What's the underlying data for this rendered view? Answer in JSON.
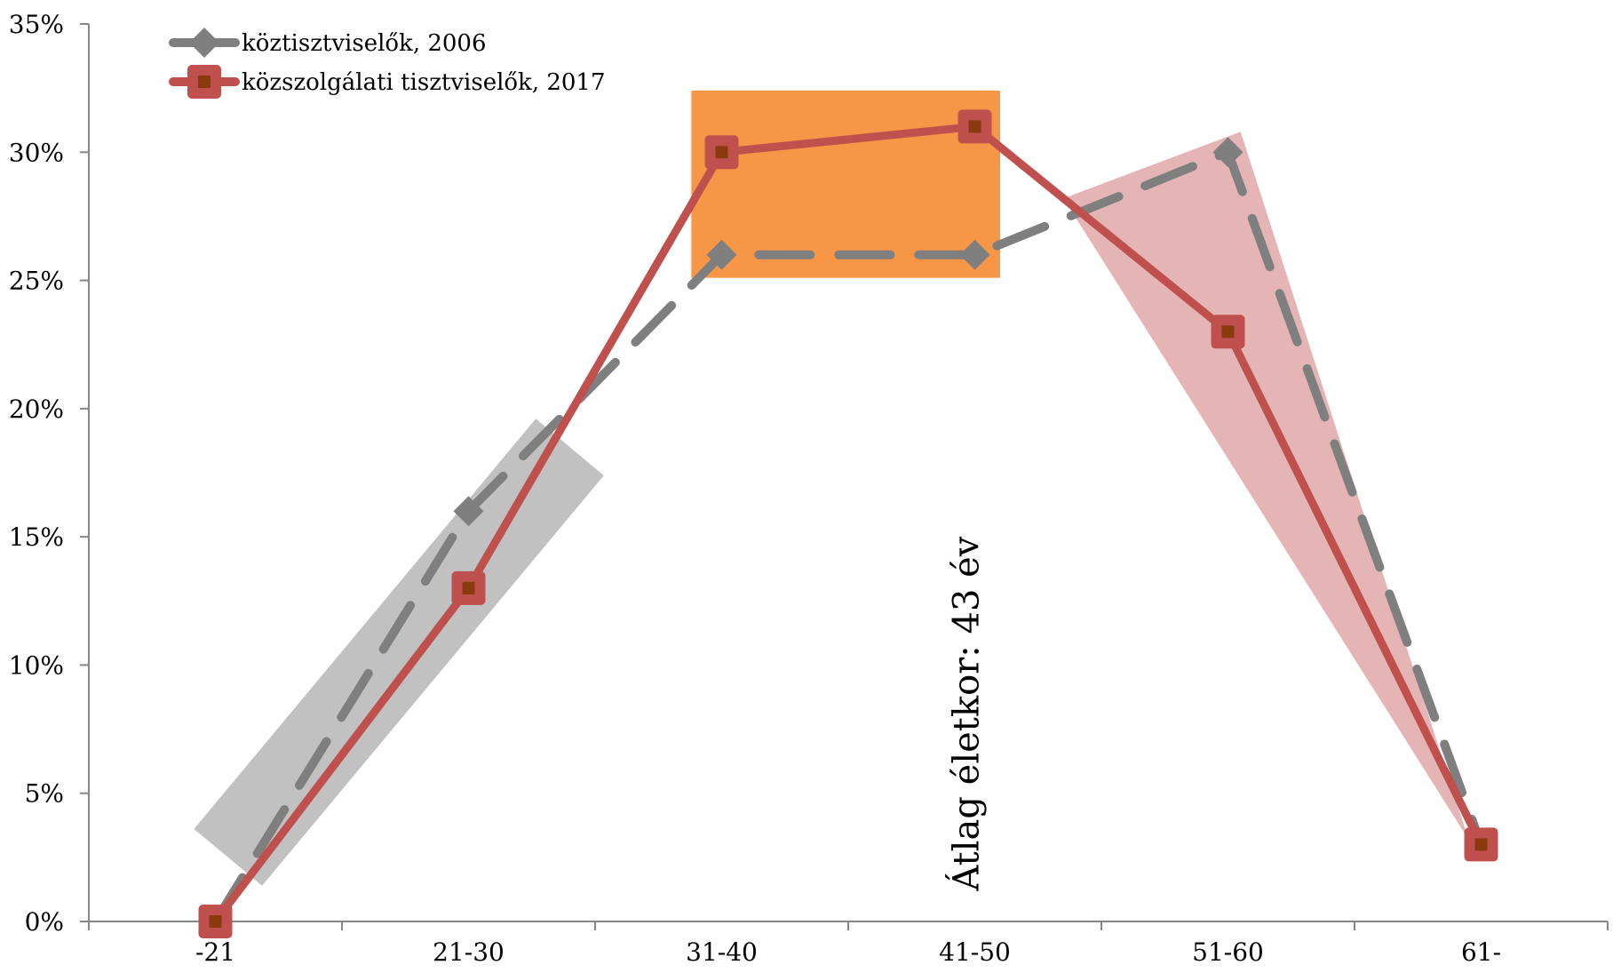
{
  "chart_data": {
    "type": "line",
    "title": "",
    "xlabel": "",
    "ylabel": "",
    "categories": [
      "-21",
      "21-30",
      "31-40",
      "41-50",
      "51-60",
      "61-"
    ],
    "ylim": [
      0,
      35
    ],
    "yticks": [
      0,
      5,
      10,
      15,
      20,
      25,
      30,
      35
    ],
    "ytick_labels": [
      "0%",
      "5%",
      "10%",
      "15%",
      "20%",
      "25%",
      "30%",
      "35%"
    ],
    "grid": false,
    "legend_position": "top-left",
    "series": [
      {
        "name": "köztisztviselők, 2006",
        "values": [
          0,
          16,
          26,
          26,
          30,
          3
        ],
        "color": "#7f7f7f",
        "line_style": "dashed",
        "marker": "diamond"
      },
      {
        "name": "közszolgálati tisztviselők, 2017",
        "values": [
          0,
          13,
          30,
          31,
          23,
          3
        ],
        "color": "#c0504d",
        "line_style": "solid",
        "marker": "square",
        "marker_fill": "#8b3a0e"
      }
    ],
    "highlights": [
      {
        "shape": "band",
        "color": "#a6a6a6",
        "opacity": 0.7,
        "from": [
          0.05,
          2.5
        ],
        "to": [
          1.4,
          18.5
        ],
        "width_units": 0.35
      },
      {
        "shape": "rect",
        "color": "#f79646",
        "x_range": [
          1.88,
          3.1
        ],
        "y_range": [
          25.1,
          32.4
        ]
      },
      {
        "shape": "triangle",
        "color": "#d99694",
        "opacity": 0.7,
        "points": [
          [
            3.35,
            28.2
          ],
          [
            4.05,
            30.8
          ],
          [
            4.95,
            3.2
          ]
        ]
      }
    ],
    "annotations": [
      {
        "text": "Átlag életkor: 43 év",
        "x": 3.0,
        "y": 0.5,
        "rotation": -90
      }
    ]
  }
}
